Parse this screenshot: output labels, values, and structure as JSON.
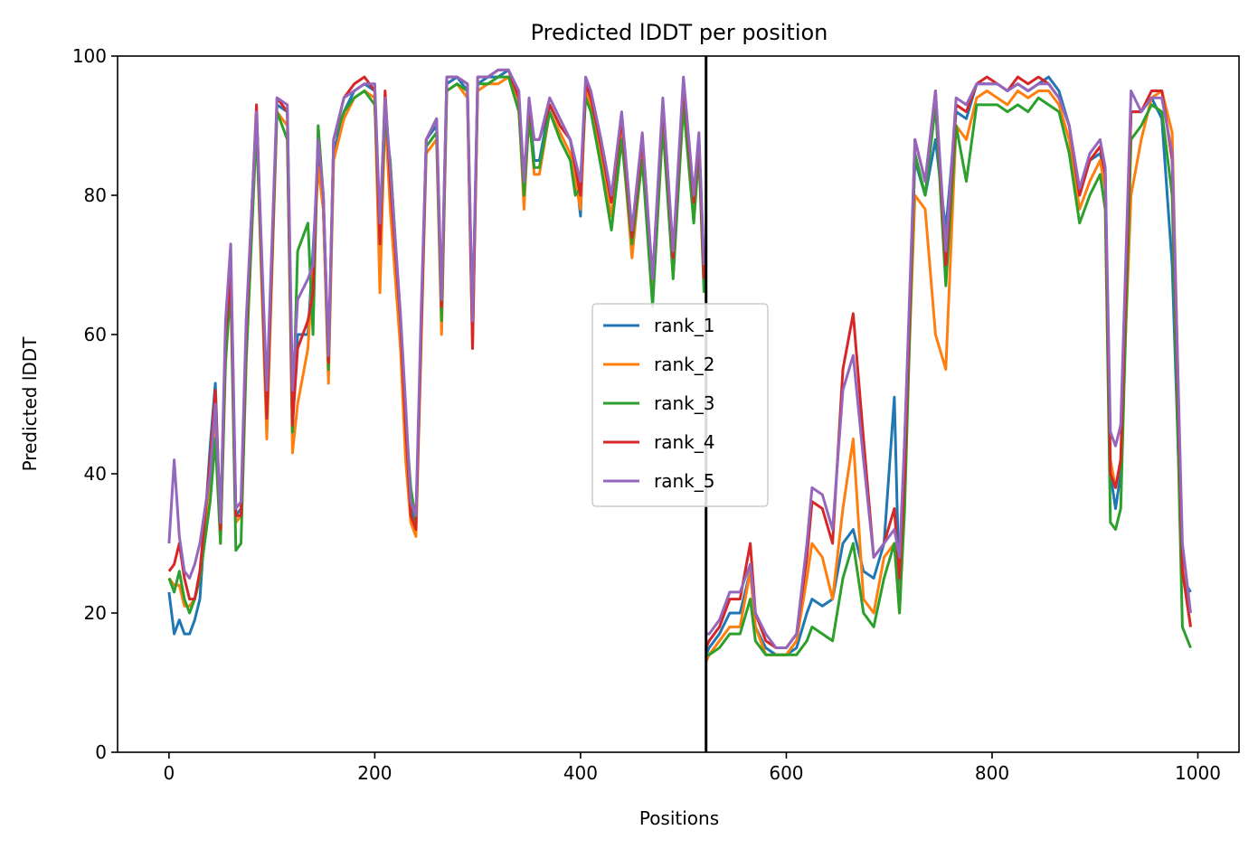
{
  "chart_data": {
    "type": "line",
    "title": "Predicted lDDT per position",
    "xlabel": "Positions",
    "ylabel": "Predicted lDDT",
    "xlim": [
      -50,
      1040
    ],
    "ylim": [
      0,
      100
    ],
    "xticks": [
      0,
      200,
      400,
      600,
      800,
      1000
    ],
    "yticks": [
      0,
      20,
      40,
      60,
      80,
      100
    ],
    "vline_x": 522,
    "legend_position": "center",
    "grid": false,
    "series": [
      {
        "name": "rank_1",
        "color": "#1f77b4",
        "x": [
          0,
          5,
          10,
          15,
          20,
          25,
          30,
          40,
          45,
          50,
          55,
          60,
          65,
          70,
          75,
          85,
          95,
          105,
          115,
          120,
          125,
          135,
          140,
          145,
          150,
          155,
          160,
          170,
          180,
          190,
          200,
          205,
          210,
          215,
          225,
          230,
          235,
          240,
          245,
          250,
          260,
          265,
          270,
          280,
          290,
          295,
          300,
          310,
          320,
          330,
          340,
          345,
          350,
          355,
          360,
          370,
          380,
          390,
          395,
          400,
          405,
          410,
          420,
          430,
          440,
          450,
          460,
          470,
          480,
          490,
          500,
          510,
          515,
          520,
          522,
          525,
          535,
          545,
          555,
          565,
          570,
          580,
          590,
          600,
          610,
          620,
          625,
          635,
          645,
          655,
          665,
          675,
          685,
          695,
          705,
          710,
          715,
          725,
          735,
          745,
          755,
          765,
          775,
          785,
          795,
          805,
          815,
          825,
          835,
          845,
          855,
          865,
          875,
          885,
          895,
          905,
          910,
          915,
          920,
          925,
          935,
          945,
          955,
          965,
          975,
          985,
          993
        ],
        "y": [
          23,
          17,
          19,
          17,
          17,
          19,
          22,
          44,
          53,
          32,
          60,
          71,
          34,
          35,
          60,
          92,
          47,
          93,
          92,
          47,
          60,
          60,
          72,
          85,
          78,
          55,
          86,
          92,
          95,
          96,
          95,
          75,
          93,
          80,
          60,
          45,
          35,
          33,
          60,
          88,
          90,
          63,
          96,
          97,
          95,
          60,
          96,
          97,
          97,
          98,
          94,
          80,
          93,
          85,
          85,
          93,
          90,
          88,
          84,
          77,
          96,
          94,
          86,
          79,
          90,
          72,
          88,
          67,
          92,
          70,
          95,
          80,
          88,
          70,
          14,
          15,
          17,
          20,
          20,
          26,
          18,
          15,
          14,
          14,
          15,
          20,
          22,
          21,
          22,
          30,
          32,
          26,
          25,
          30,
          51,
          22,
          45,
          85,
          80,
          88,
          75,
          92,
          91,
          96,
          96,
          96,
          95,
          96,
          95,
          96,
          97,
          95,
          90,
          80,
          85,
          86,
          83,
          40,
          35,
          40,
          92,
          92,
          94,
          91,
          70,
          25,
          23
        ]
      },
      {
        "name": "rank_2",
        "color": "#ff7f0e",
        "x": [
          0,
          5,
          10,
          15,
          20,
          25,
          30,
          40,
          45,
          50,
          55,
          60,
          65,
          70,
          75,
          85,
          95,
          105,
          115,
          120,
          125,
          135,
          140,
          145,
          150,
          155,
          160,
          170,
          180,
          190,
          200,
          205,
          210,
          215,
          225,
          230,
          235,
          240,
          245,
          250,
          260,
          265,
          270,
          280,
          290,
          295,
          300,
          310,
          320,
          330,
          340,
          345,
          350,
          355,
          360,
          370,
          380,
          390,
          395,
          400,
          405,
          410,
          420,
          430,
          440,
          450,
          460,
          470,
          480,
          490,
          500,
          510,
          515,
          520,
          522,
          525,
          535,
          545,
          555,
          565,
          570,
          580,
          590,
          600,
          610,
          620,
          625,
          635,
          645,
          655,
          665,
          675,
          685,
          695,
          705,
          710,
          715,
          725,
          735,
          745,
          755,
          765,
          775,
          785,
          795,
          805,
          815,
          825,
          835,
          845,
          855,
          865,
          875,
          885,
          895,
          905,
          910,
          915,
          920,
          925,
          935,
          945,
          955,
          965,
          975,
          985,
          993
        ],
        "y": [
          25,
          24,
          24,
          21,
          21,
          22,
          25,
          40,
          48,
          30,
          58,
          68,
          33,
          34,
          58,
          90,
          45,
          92,
          90,
          43,
          50,
          58,
          70,
          84,
          78,
          53,
          85,
          91,
          94,
          95,
          94,
          66,
          92,
          78,
          58,
          42,
          33,
          31,
          58,
          86,
          88,
          60,
          95,
          96,
          94,
          58,
          95,
          96,
          96,
          97,
          93,
          78,
          92,
          83,
          83,
          92,
          89,
          86,
          82,
          78,
          95,
          93,
          85,
          77,
          89,
          71,
          86,
          65,
          91,
          69,
          94,
          78,
          87,
          68,
          13,
          14,
          16,
          18,
          18,
          26,
          18,
          14,
          14,
          14,
          16,
          25,
          30,
          28,
          22,
          35,
          45,
          22,
          20,
          28,
          30,
          20,
          40,
          80,
          78,
          60,
          55,
          90,
          88,
          94,
          95,
          94,
          93,
          95,
          94,
          95,
          95,
          93,
          88,
          78,
          82,
          85,
          81,
          42,
          38,
          42,
          80,
          88,
          94,
          95,
          89,
          27,
          18
        ]
      },
      {
        "name": "rank_3",
        "color": "#2ca02c",
        "x": [
          0,
          5,
          10,
          15,
          20,
          25,
          30,
          40,
          45,
          50,
          55,
          60,
          65,
          70,
          75,
          85,
          95,
          105,
          115,
          120,
          125,
          135,
          140,
          145,
          150,
          155,
          160,
          170,
          180,
          190,
          200,
          205,
          210,
          215,
          225,
          230,
          235,
          240,
          245,
          250,
          260,
          265,
          270,
          280,
          290,
          295,
          300,
          310,
          320,
          330,
          340,
          345,
          350,
          355,
          360,
          370,
          380,
          390,
          395,
          400,
          405,
          410,
          420,
          430,
          440,
          450,
          460,
          470,
          480,
          490,
          500,
          510,
          515,
          520,
          522,
          525,
          535,
          545,
          555,
          565,
          570,
          580,
          590,
          600,
          610,
          620,
          625,
          635,
          645,
          655,
          665,
          675,
          685,
          695,
          705,
          710,
          715,
          725,
          735,
          745,
          755,
          765,
          775,
          785,
          795,
          805,
          815,
          825,
          835,
          845,
          855,
          865,
          875,
          885,
          895,
          905,
          910,
          915,
          920,
          925,
          935,
          945,
          955,
          965,
          975,
          985,
          993
        ],
        "y": [
          25,
          23,
          26,
          22,
          20,
          22,
          25,
          36,
          45,
          30,
          56,
          67,
          29,
          30,
          56,
          90,
          48,
          92,
          88,
          46,
          72,
          76,
          60,
          90,
          80,
          55,
          88,
          92,
          94,
          95,
          93,
          74,
          91,
          85,
          62,
          48,
          38,
          33,
          60,
          87,
          89,
          62,
          95,
          96,
          95,
          60,
          96,
          96,
          97,
          97,
          92,
          80,
          91,
          84,
          84,
          92,
          88,
          85,
          80,
          81,
          94,
          92,
          84,
          75,
          88,
          73,
          85,
          64,
          90,
          68,
          93,
          76,
          86,
          66,
          14,
          14,
          15,
          17,
          17,
          22,
          16,
          14,
          14,
          14,
          14,
          16,
          18,
          17,
          16,
          25,
          30,
          20,
          18,
          25,
          30,
          20,
          35,
          86,
          80,
          93,
          67,
          90,
          82,
          93,
          93,
          93,
          92,
          93,
          92,
          94,
          93,
          92,
          86,
          76,
          80,
          83,
          78,
          33,
          32,
          35,
          88,
          90,
          93,
          92,
          80,
          18,
          15
        ]
      },
      {
        "name": "rank_4",
        "color": "#d62728",
        "x": [
          0,
          5,
          10,
          15,
          20,
          25,
          30,
          40,
          45,
          50,
          55,
          60,
          65,
          70,
          75,
          85,
          95,
          105,
          115,
          120,
          125,
          135,
          140,
          145,
          150,
          155,
          160,
          170,
          180,
          190,
          200,
          205,
          210,
          215,
          225,
          230,
          235,
          240,
          245,
          250,
          260,
          265,
          270,
          280,
          290,
          295,
          300,
          310,
          320,
          330,
          340,
          345,
          350,
          355,
          360,
          370,
          380,
          390,
          395,
          400,
          405,
          410,
          420,
          430,
          440,
          450,
          460,
          470,
          480,
          490,
          500,
          510,
          515,
          520,
          522,
          525,
          535,
          545,
          555,
          565,
          570,
          580,
          590,
          600,
          610,
          620,
          625,
          635,
          645,
          655,
          665,
          675,
          685,
          695,
          705,
          710,
          715,
          725,
          735,
          745,
          755,
          765,
          775,
          785,
          795,
          805,
          815,
          825,
          835,
          845,
          855,
          865,
          875,
          885,
          895,
          905,
          910,
          915,
          920,
          925,
          935,
          945,
          955,
          965,
          975,
          985,
          993
        ],
        "y": [
          26,
          27,
          30,
          25,
          22,
          22,
          26,
          42,
          52,
          32,
          60,
          69,
          34,
          34,
          60,
          93,
          48,
          94,
          92,
          47,
          58,
          62,
          66,
          88,
          80,
          56,
          88,
          94,
          96,
          97,
          95,
          73,
          95,
          82,
          62,
          47,
          34,
          32,
          60,
          88,
          91,
          64,
          97,
          97,
          96,
          58,
          97,
          97,
          98,
          98,
          94,
          82,
          93,
          88,
          88,
          93,
          90,
          88,
          84,
          80,
          96,
          94,
          87,
          79,
          91,
          74,
          88,
          68,
          93,
          71,
          96,
          79,
          88,
          68,
          15,
          16,
          18,
          22,
          22,
          30,
          20,
          16,
          15,
          15,
          17,
          28,
          36,
          35,
          30,
          55,
          63,
          45,
          28,
          30,
          35,
          25,
          40,
          88,
          82,
          95,
          70,
          93,
          92,
          96,
          97,
          96,
          95,
          97,
          96,
          97,
          96,
          94,
          90,
          80,
          85,
          87,
          83,
          40,
          38,
          42,
          92,
          92,
          95,
          95,
          85,
          26,
          18
        ]
      },
      {
        "name": "rank_5",
        "color": "#9467bd",
        "x": [
          0,
          5,
          10,
          15,
          20,
          25,
          30,
          40,
          45,
          50,
          55,
          60,
          65,
          70,
          75,
          85,
          95,
          105,
          115,
          120,
          125,
          135,
          140,
          145,
          150,
          155,
          160,
          170,
          180,
          190,
          200,
          205,
          210,
          215,
          225,
          230,
          235,
          240,
          245,
          250,
          260,
          265,
          270,
          280,
          290,
          295,
          300,
          310,
          320,
          330,
          340,
          345,
          350,
          355,
          360,
          370,
          380,
          390,
          395,
          400,
          405,
          410,
          420,
          430,
          440,
          450,
          460,
          470,
          480,
          490,
          500,
          510,
          515,
          520,
          522,
          525,
          535,
          545,
          555,
          565,
          570,
          580,
          590,
          600,
          610,
          620,
          625,
          635,
          645,
          655,
          665,
          675,
          685,
          695,
          705,
          710,
          715,
          725,
          735,
          745,
          755,
          765,
          775,
          785,
          795,
          805,
          815,
          825,
          835,
          845,
          855,
          865,
          875,
          885,
          895,
          905,
          910,
          915,
          920,
          925,
          935,
          945,
          955,
          965,
          975,
          985,
          993
        ],
        "y": [
          30,
          42,
          31,
          26,
          25,
          27,
          30,
          40,
          50,
          33,
          62,
          73,
          35,
          36,
          62,
          92,
          52,
          94,
          93,
          52,
          65,
          68,
          70,
          88,
          80,
          57,
          88,
          94,
          95,
          96,
          96,
          76,
          94,
          84,
          63,
          50,
          36,
          34,
          63,
          88,
          91,
          65,
          97,
          97,
          96,
          62,
          97,
          97,
          98,
          98,
          95,
          82,
          94,
          88,
          88,
          94,
          91,
          88,
          85,
          82,
          97,
          95,
          88,
          80,
          92,
          75,
          89,
          68,
          94,
          72,
          97,
          80,
          89,
          70,
          17,
          17,
          19,
          23,
          23,
          27,
          20,
          17,
          15,
          15,
          17,
          30,
          38,
          37,
          32,
          52,
          57,
          42,
          28,
          30,
          32,
          28,
          45,
          88,
          82,
          95,
          72,
          94,
          93,
          96,
          96,
          96,
          95,
          96,
          95,
          96,
          96,
          94,
          90,
          81,
          86,
          88,
          84,
          46,
          44,
          47,
          95,
          92,
          94,
          94,
          86,
          30,
          20
        ]
      }
    ]
  }
}
